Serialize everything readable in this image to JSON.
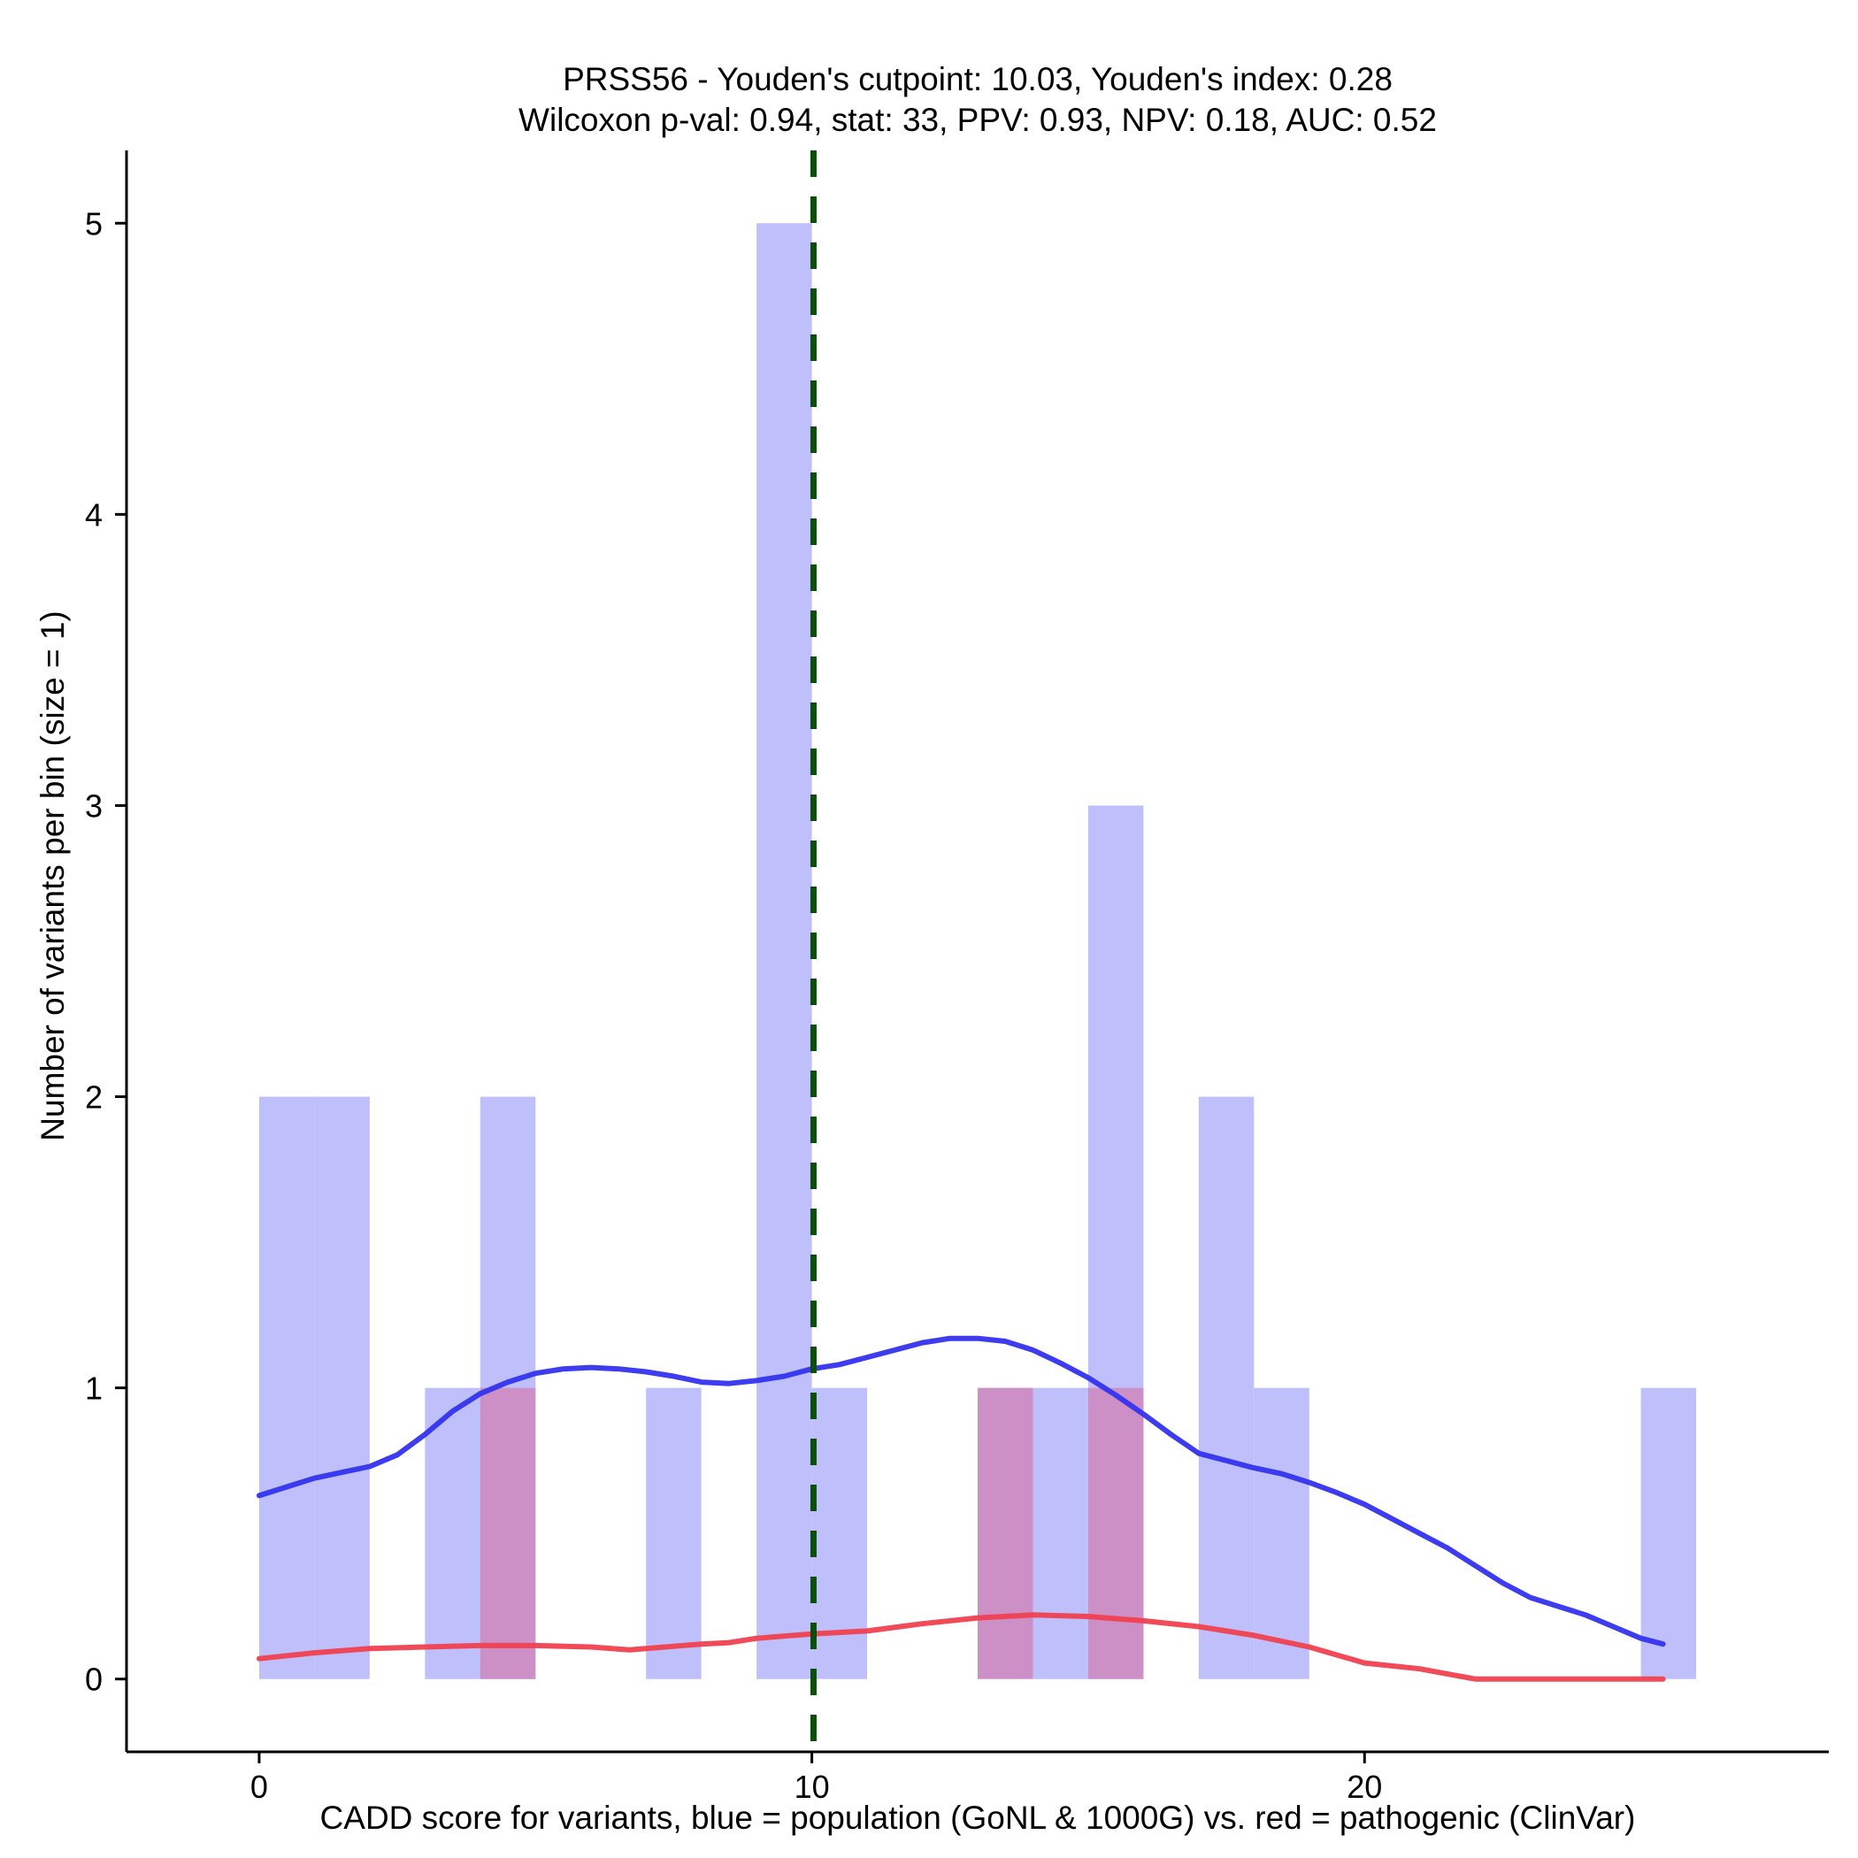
{
  "chart_data": {
    "type": "histogram",
    "title": "PRSS56 - Youden's cutpoint: 10.03, Youden's index: 0.28",
    "subtitle": "Wilcoxon p-val: 0.94, stat: 33, PPV: 0.93, NPV: 0.18, AUC: 0.52",
    "xlabel": "CADD score for variants, blue = population (GoNL & 1000G) vs. red = pathogenic (ClinVar)",
    "ylabel": "Number of variants per bin (size = 1)",
    "xlim": [
      -2.4,
      28.4
    ],
    "ylim": [
      -0.25,
      5.25
    ],
    "xticks": [
      {
        "value": 0,
        "label": "0"
      },
      {
        "value": 10,
        "label": "10"
      },
      {
        "value": 20,
        "label": "20"
      }
    ],
    "yticks": [
      {
        "value": 0,
        "label": "0"
      },
      {
        "value": 1,
        "label": "1"
      },
      {
        "value": 2,
        "label": "2"
      },
      {
        "value": 3,
        "label": "3"
      },
      {
        "value": 4,
        "label": "4"
      },
      {
        "value": 5,
        "label": "5"
      }
    ],
    "cutpoint": 10.03,
    "colors": {
      "population_bar": "#bfbffb",
      "pathogenic_bar": "#cc8fc6",
      "population_line": "#3333ee",
      "pathogenic_line": "#f0404f",
      "cutpoint_line": "#0b4f0b"
    },
    "series": [
      {
        "name": "population",
        "bins": [
          {
            "start": 0,
            "end": 1,
            "count": 2
          },
          {
            "start": 1,
            "end": 2,
            "count": 2
          },
          {
            "start": 3,
            "end": 4,
            "count": 1
          },
          {
            "start": 4,
            "end": 5,
            "count": 2
          },
          {
            "start": 7,
            "end": 8,
            "count": 1
          },
          {
            "start": 9,
            "end": 10,
            "count": 5
          },
          {
            "start": 10,
            "end": 11,
            "count": 1
          },
          {
            "start": 14,
            "end": 15,
            "count": 1
          },
          {
            "start": 15,
            "end": 16,
            "count": 3
          },
          {
            "start": 17,
            "end": 18,
            "count": 2
          },
          {
            "start": 18,
            "end": 19,
            "count": 1
          },
          {
            "start": 25,
            "end": 26,
            "count": 1
          }
        ],
        "density_curve": [
          [
            0,
            0.63
          ],
          [
            0.5,
            0.66
          ],
          [
            1,
            0.69
          ],
          [
            1.5,
            0.71
          ],
          [
            2,
            0.73
          ],
          [
            2.5,
            0.77
          ],
          [
            3,
            0.84
          ],
          [
            3.5,
            0.92
          ],
          [
            4,
            0.98
          ],
          [
            4.5,
            1.02
          ],
          [
            5,
            1.05
          ],
          [
            5.5,
            1.065
          ],
          [
            6,
            1.07
          ],
          [
            6.5,
            1.065
          ],
          [
            7,
            1.055
          ],
          [
            7.5,
            1.04
          ],
          [
            8,
            1.02
          ],
          [
            8.5,
            1.015
          ],
          [
            9,
            1.025
          ],
          [
            9.5,
            1.04
          ],
          [
            10,
            1.065
          ],
          [
            10.5,
            1.08
          ],
          [
            11,
            1.105
          ],
          [
            11.5,
            1.13
          ],
          [
            12,
            1.155
          ],
          [
            12.5,
            1.17
          ],
          [
            13,
            1.17
          ],
          [
            13.5,
            1.16
          ],
          [
            14,
            1.13
          ],
          [
            14.5,
            1.085
          ],
          [
            15,
            1.035
          ],
          [
            15.5,
            0.975
          ],
          [
            16,
            0.91
          ],
          [
            16.5,
            0.84
          ],
          [
            17,
            0.775
          ],
          [
            17.5,
            0.75
          ],
          [
            18,
            0.725
          ],
          [
            18.5,
            0.705
          ],
          [
            19,
            0.675
          ],
          [
            19.5,
            0.64
          ],
          [
            20,
            0.6
          ],
          [
            20.5,
            0.55
          ],
          [
            21,
            0.5
          ],
          [
            21.5,
            0.45
          ],
          [
            22,
            0.39
          ],
          [
            22.5,
            0.33
          ],
          [
            23,
            0.28
          ],
          [
            23.5,
            0.25
          ],
          [
            24,
            0.22
          ],
          [
            24.5,
            0.18
          ],
          [
            25,
            0.14
          ],
          [
            25.4,
            0.12
          ]
        ]
      },
      {
        "name": "pathogenic",
        "bins": [
          {
            "start": 4,
            "end": 5,
            "count": 1
          },
          {
            "start": 13,
            "end": 14,
            "count": 1
          },
          {
            "start": 15,
            "end": 16,
            "count": 1
          }
        ],
        "density_curve": [
          [
            0,
            0.07
          ],
          [
            1,
            0.09
          ],
          [
            2,
            0.105
          ],
          [
            3,
            0.11
          ],
          [
            4,
            0.115
          ],
          [
            5,
            0.115
          ],
          [
            6,
            0.11
          ],
          [
            6.7,
            0.1
          ],
          [
            7,
            0.105
          ],
          [
            8,
            0.12
          ],
          [
            8.5,
            0.125
          ],
          [
            9,
            0.14
          ],
          [
            10,
            0.155
          ],
          [
            11,
            0.165
          ],
          [
            12,
            0.19
          ],
          [
            13,
            0.21
          ],
          [
            14,
            0.22
          ],
          [
            15,
            0.215
          ],
          [
            16,
            0.2
          ],
          [
            17,
            0.18
          ],
          [
            18,
            0.15
          ],
          [
            19,
            0.11
          ],
          [
            20,
            0.055
          ],
          [
            21,
            0.035
          ],
          [
            22,
            0.0
          ],
          [
            23,
            0.0
          ],
          [
            25.4,
            0.0
          ]
        ]
      }
    ]
  }
}
